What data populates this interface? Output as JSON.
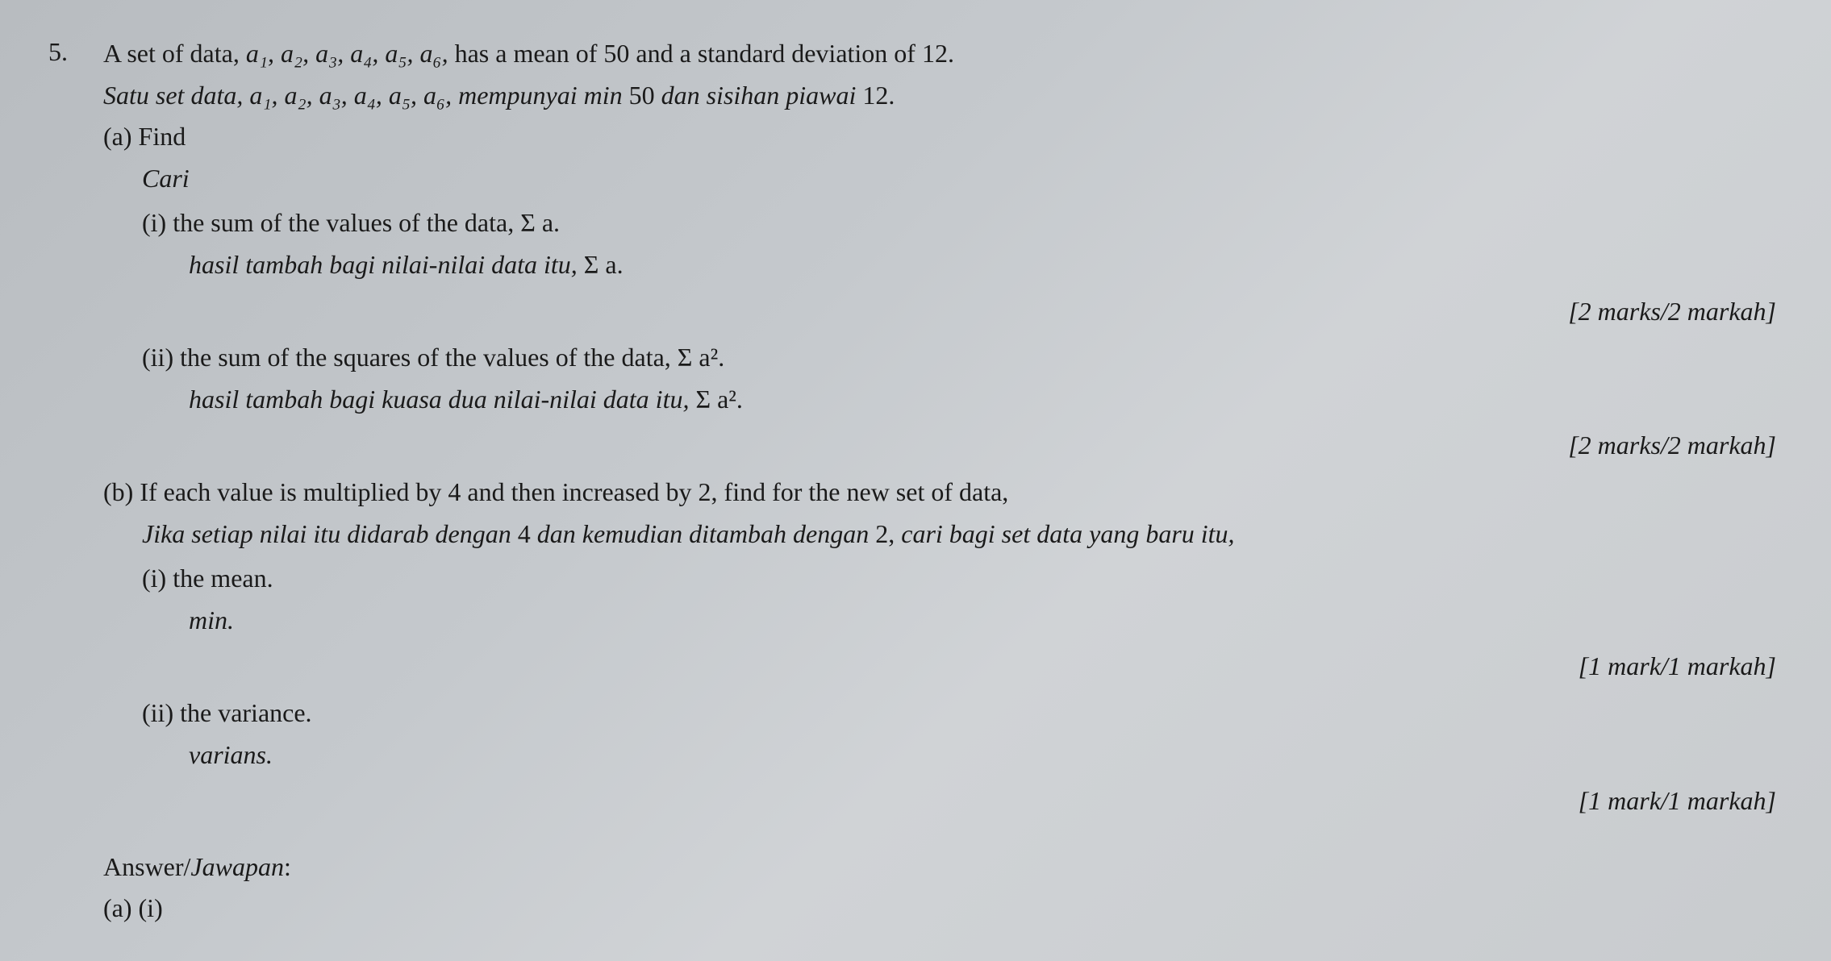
{
  "q": {
    "num": "5.",
    "line1_pre": "A set of data, ",
    "line1_vars": "a₁, a₂, a₃, a₄, a₅, a₆,",
    "line1_post": " has a mean of 50 and a standard deviation of 12.",
    "line2_pre": "Satu set data, a",
    "line2_vars_rest": "₁, a₂, a₃, a₄, a₅, a₆, mempunyai min ",
    "line2_num1": "50",
    "line2_mid": " dan sisihan piawai ",
    "line2_num2": "12.",
    "a_label": "(a) Find",
    "a_cari": "Cari",
    "a_i_label": "(i)  the sum of the values of the data, ",
    "a_i_sigma": "Σ a",
    "a_i_dot": ".",
    "a_i_sub": "hasil tambah bagi nilai-nilai data itu, ",
    "a_i_sub_sigma": "Σ a",
    "a_i_sub_dot": ".",
    "marks2": "[2 marks/2 markah]",
    "a_ii_label": "(ii) the sum of the squares of the values of the data, ",
    "a_ii_sigma": "Σ a²",
    "a_ii_dot": ".",
    "a_ii_sub": "hasil tambah bagi kuasa dua nilai-nilai data itu, ",
    "a_ii_sub_sigma": "Σ a²",
    "a_ii_sub_dot": ".",
    "b_line1": "(b) If each value is multiplied by 4 and then increased by 2, find for the new set of data,",
    "b_line2_pre": "Jika setiap nilai itu didarab dengan ",
    "b_line2_num1": "4",
    "b_line2_mid": " dan kemudian ditambah dengan ",
    "b_line2_num2": "2,",
    "b_line2_post": " cari bagi set data yang baru itu,",
    "b_i_label": "(i)  the mean.",
    "b_i_sub": "min.",
    "marks1": "[1 mark/1 markah]",
    "b_ii_label": "(ii) the variance.",
    "b_ii_sub": "varians.",
    "answer_label": "Answer/Jawapan:",
    "answer_ai": "(a) (i)"
  }
}
